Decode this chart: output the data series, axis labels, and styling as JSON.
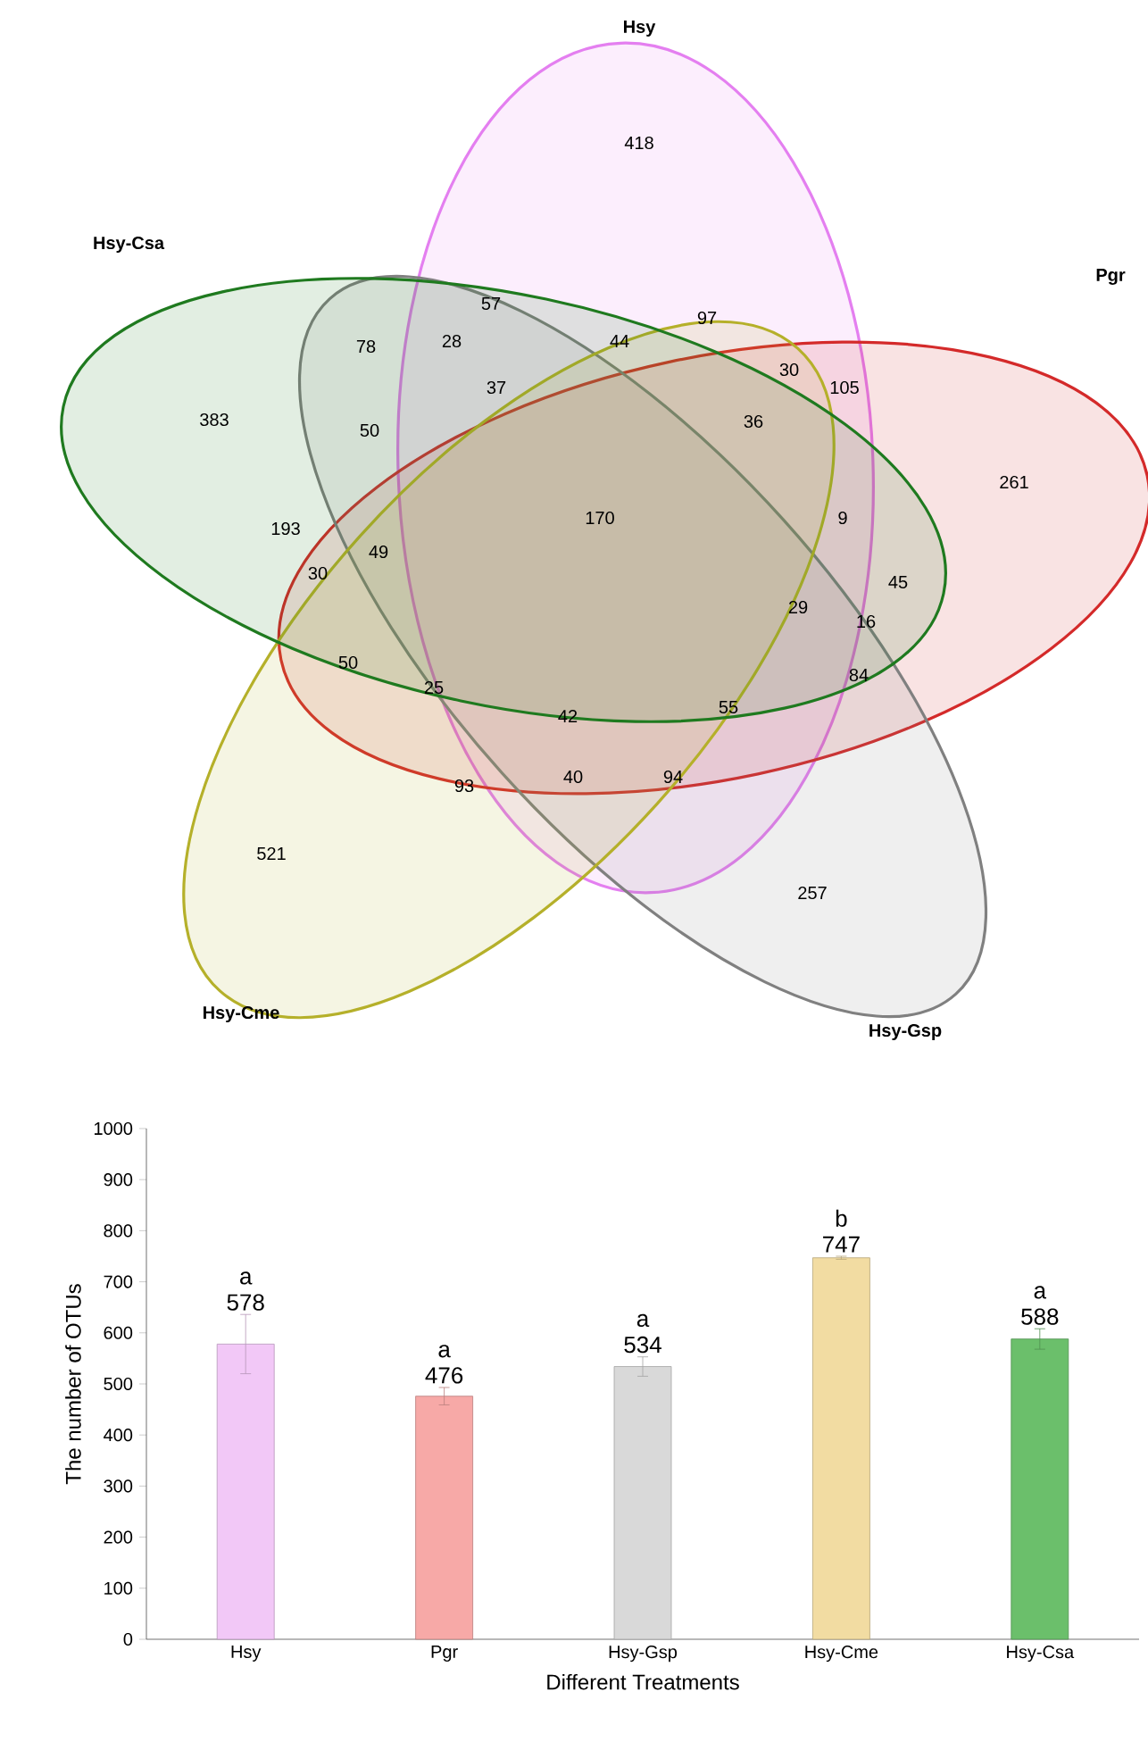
{
  "chart_data": [
    {
      "type": "other",
      "categories": [
        "Hsy",
        "Pgr",
        "Hsy-Gsp",
        "Hsy-Cme",
        "Hsy-Csa"
      ],
      "colors": [
        "#e47ff0",
        "#d42a2a",
        "#808080",
        "#b5b02a",
        "#1f7a1f"
      ],
      "annotations": [
        "418",
        "383",
        "261",
        "521",
        "257",
        "57",
        "28",
        "44",
        "97",
        "30",
        "105",
        "78",
        "37",
        "36",
        "50",
        "9",
        "170",
        "45",
        "193",
        "49",
        "30",
        "29",
        "16",
        "50",
        "25",
        "84",
        "42",
        "55",
        "93",
        "40",
        "94"
      ]
    },
    {
      "type": "bar",
      "xlabel": "Different Treatments",
      "ylabel": "The number of OTUs",
      "categories": [
        "Hsy",
        "Pgr",
        "Hsy-Gsp",
        "Hsy-Cme",
        "Hsy-Csa"
      ],
      "values": [
        578,
        476,
        534,
        747,
        588
      ],
      "errors": [
        58,
        17,
        19,
        3,
        20
      ],
      "colors": [
        "#f2c8f7",
        "#f7a9a7",
        "#d9d9d9",
        "#f2dca2",
        "#6bbf6b"
      ],
      "data_labels": true,
      "annotations": [
        "a",
        "a",
        "a",
        "b",
        "a"
      ],
      "ylim": [
        0,
        1000
      ],
      "yticks": [
        0,
        100,
        200,
        300,
        400,
        500,
        600,
        700,
        800,
        900,
        1000
      ]
    }
  ]
}
